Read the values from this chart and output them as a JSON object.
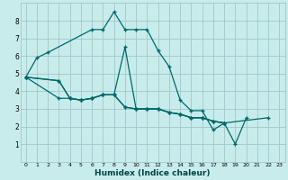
{
  "xlabel": "Humidex (Indice chaleur)",
  "background_color": "#c8ecec",
  "grid_color": "#a0c8c8",
  "line_color": "#006868",
  "xlim": [
    -0.5,
    23.5
  ],
  "ylim": [
    0,
    9
  ],
  "yticks": [
    1,
    2,
    3,
    4,
    5,
    6,
    7,
    8
  ],
  "xticks": [
    0,
    1,
    2,
    3,
    4,
    5,
    6,
    7,
    8,
    9,
    10,
    11,
    12,
    13,
    14,
    15,
    16,
    17,
    18,
    19,
    20,
    21,
    22,
    23
  ],
  "series1_x": [
    0,
    1,
    2,
    6,
    7,
    8,
    9,
    10,
    11,
    12,
    13,
    14,
    15,
    16,
    17,
    18,
    19,
    20
  ],
  "series1_y": [
    4.8,
    5.9,
    6.2,
    7.5,
    7.5,
    8.5,
    7.5,
    7.5,
    7.5,
    6.3,
    5.4,
    3.5,
    2.9,
    2.9,
    1.8,
    2.2,
    1.0,
    2.5
  ],
  "series2_x": [
    0,
    3,
    4,
    5,
    6,
    7,
    8,
    9,
    10,
    11,
    12,
    13,
    14,
    15,
    16,
    17,
    18
  ],
  "series2_y": [
    4.8,
    4.6,
    3.6,
    3.5,
    3.6,
    3.8,
    3.8,
    3.1,
    3.0,
    3.0,
    3.0,
    2.8,
    2.7,
    2.5,
    2.5,
    2.3,
    2.2
  ],
  "series3_x": [
    0,
    3,
    4,
    5,
    6,
    7,
    8,
    9,
    10,
    11,
    12,
    13,
    14,
    15,
    16,
    17,
    18
  ],
  "series3_y": [
    4.8,
    3.6,
    3.6,
    3.5,
    3.6,
    3.8,
    3.8,
    3.1,
    3.0,
    3.0,
    3.0,
    2.8,
    2.7,
    2.5,
    2.5,
    2.3,
    2.2
  ],
  "series4_x": [
    0,
    3,
    4,
    5,
    6,
    7,
    8,
    9,
    10,
    11,
    12,
    13,
    14,
    15,
    16,
    17,
    18,
    22
  ],
  "series4_y": [
    4.8,
    4.6,
    3.6,
    3.5,
    3.6,
    3.8,
    3.8,
    6.5,
    3.0,
    3.0,
    3.0,
    2.8,
    2.7,
    2.5,
    2.5,
    2.3,
    2.2,
    2.5
  ]
}
